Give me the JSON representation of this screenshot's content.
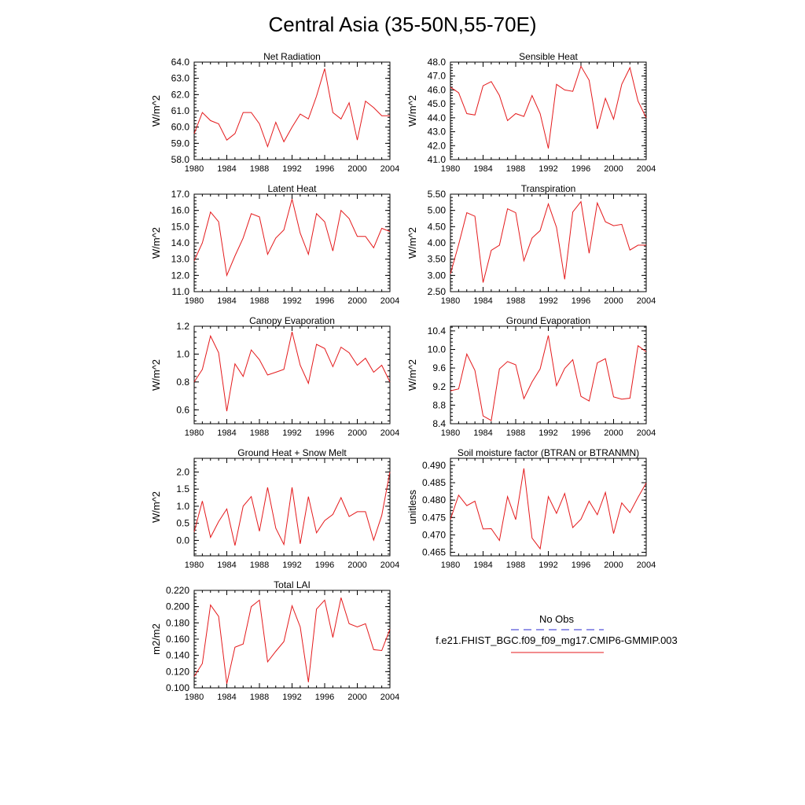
{
  "figure": {
    "title": "Central Asia (35-50N,55-70E)"
  },
  "legend": {
    "entries": [
      {
        "label": "No Obs",
        "color": "#2a2ad0",
        "style": "dashed"
      },
      {
        "label": "f.e21.FHIST_BGC.f09_f09_mg17.CMIP6-GMMIP.003",
        "color": "#e41a1c",
        "style": "solid"
      }
    ]
  },
  "chart_data": [
    {
      "type": "line",
      "title": "Net Radiation",
      "xlabel": "",
      "ylabel": "W/m^2",
      "xlim": [
        1980,
        2004
      ],
      "ylim": [
        58.0,
        64.0
      ],
      "xticks": [
        1980,
        1984,
        1988,
        1992,
        1996,
        2000,
        2004
      ],
      "yticks": [
        58.0,
        59.0,
        60.0,
        61.0,
        62.0,
        63.0,
        64.0
      ],
      "ytick_decimals": 1,
      "grid": false,
      "series": [
        {
          "color": "#e41a1c",
          "x": [
            1980,
            1981,
            1982,
            1983,
            1984,
            1985,
            1986,
            1987,
            1988,
            1989,
            1990,
            1991,
            1992,
            1993,
            1994,
            1995,
            1996,
            1997,
            1998,
            1999,
            2000,
            2001,
            2002,
            2003,
            2004
          ],
          "y": [
            59.6,
            60.9,
            60.4,
            60.2,
            59.2,
            59.6,
            60.9,
            60.9,
            60.2,
            58.8,
            60.3,
            59.1,
            60.0,
            60.8,
            60.5,
            61.9,
            63.6,
            60.9,
            60.5,
            61.5,
            59.2,
            61.6,
            61.2,
            60.7,
            60.7
          ]
        }
      ]
    },
    {
      "type": "line",
      "title": "Sensible Heat",
      "xlabel": "",
      "ylabel": "W/m^2",
      "xlim": [
        1980,
        2004
      ],
      "ylim": [
        41.0,
        48.0
      ],
      "xticks": [
        1980,
        1984,
        1988,
        1992,
        1996,
        2000,
        2004
      ],
      "yticks": [
        41.0,
        42.0,
        43.0,
        44.0,
        45.0,
        46.0,
        47.0,
        48.0
      ],
      "ytick_decimals": 1,
      "grid": false,
      "series": [
        {
          "color": "#e41a1c",
          "x": [
            1980,
            1981,
            1982,
            1983,
            1984,
            1985,
            1986,
            1987,
            1988,
            1989,
            1990,
            1991,
            1992,
            1993,
            1994,
            1995,
            1996,
            1997,
            1998,
            1999,
            2000,
            2001,
            2002,
            2003,
            2004
          ],
          "y": [
            46.2,
            45.8,
            44.3,
            44.2,
            46.3,
            46.6,
            45.6,
            43.8,
            44.3,
            44.1,
            45.6,
            44.3,
            41.8,
            46.4,
            46.0,
            45.9,
            47.7,
            46.7,
            43.2,
            45.4,
            43.9,
            46.4,
            47.6,
            45.2,
            44.0
          ]
        }
      ]
    },
    {
      "type": "line",
      "title": "Latent Heat",
      "xlabel": "",
      "ylabel": "W/m^2",
      "xlim": [
        1980,
        2004
      ],
      "ylim": [
        11.0,
        17.0
      ],
      "xticks": [
        1980,
        1984,
        1988,
        1992,
        1996,
        2000,
        2004
      ],
      "yticks": [
        11.0,
        12.0,
        13.0,
        14.0,
        15.0,
        16.0,
        17.0
      ],
      "ytick_decimals": 1,
      "grid": false,
      "series": [
        {
          "color": "#e41a1c",
          "x": [
            1980,
            1981,
            1982,
            1983,
            1984,
            1985,
            1986,
            1987,
            1988,
            1989,
            1990,
            1991,
            1992,
            1993,
            1994,
            1995,
            1996,
            1997,
            1998,
            1999,
            2000,
            2001,
            2002,
            2003,
            2004
          ],
          "y": [
            12.9,
            14.0,
            15.9,
            15.3,
            12.0,
            13.2,
            14.3,
            15.8,
            15.6,
            13.3,
            14.3,
            14.8,
            16.7,
            14.6,
            13.3,
            15.8,
            15.3,
            13.5,
            16.0,
            15.5,
            14.4,
            14.4,
            13.7,
            14.9,
            14.7
          ]
        }
      ]
    },
    {
      "type": "line",
      "title": "Transpiration",
      "xlabel": "",
      "ylabel": "W/m^2",
      "xlim": [
        1980,
        2004
      ],
      "ylim": [
        2.5,
        5.5
      ],
      "xticks": [
        1980,
        1984,
        1988,
        1992,
        1996,
        2000,
        2004
      ],
      "yticks": [
        2.5,
        3.0,
        3.5,
        4.0,
        4.5,
        5.0,
        5.5
      ],
      "ytick_decimals": 2,
      "grid": false,
      "series": [
        {
          "color": "#e41a1c",
          "x": [
            1980,
            1981,
            1982,
            1983,
            1984,
            1985,
            1986,
            1987,
            1988,
            1989,
            1990,
            1991,
            1992,
            1993,
            1994,
            1995,
            1996,
            1997,
            1998,
            1999,
            2000,
            2001,
            2002,
            2003,
            2004
          ],
          "y": [
            3.05,
            3.95,
            4.93,
            4.82,
            2.78,
            3.77,
            3.93,
            5.05,
            4.93,
            3.45,
            4.15,
            4.38,
            5.2,
            4.48,
            2.88,
            4.95,
            5.27,
            3.68,
            5.23,
            4.65,
            4.53,
            4.57,
            3.78,
            3.93,
            3.93
          ]
        }
      ]
    },
    {
      "type": "line",
      "title": "Canopy Evaporation",
      "xlabel": "",
      "ylabel": "W/m^2",
      "xlim": [
        1980,
        2004
      ],
      "ylim": [
        0.5,
        1.2
      ],
      "xticks": [
        1980,
        1984,
        1988,
        1992,
        1996,
        2000,
        2004
      ],
      "yticks": [
        0.6,
        0.8,
        1.0,
        1.2
      ],
      "ytick_decimals": 1,
      "grid": false,
      "series": [
        {
          "color": "#e41a1c",
          "x": [
            1980,
            1981,
            1982,
            1983,
            1984,
            1985,
            1986,
            1987,
            1988,
            1989,
            1990,
            1991,
            1992,
            1993,
            1994,
            1995,
            1996,
            1997,
            1998,
            1999,
            2000,
            2001,
            2002,
            2003,
            2004
          ],
          "y": [
            0.8,
            0.89,
            1.13,
            1.01,
            0.59,
            0.93,
            0.84,
            1.03,
            0.96,
            0.85,
            0.87,
            0.89,
            1.16,
            0.92,
            0.79,
            1.07,
            1.04,
            0.91,
            1.05,
            1.01,
            0.92,
            0.97,
            0.87,
            0.92,
            0.8
          ]
        }
      ]
    },
    {
      "type": "line",
      "title": "Ground Evaporation",
      "xlabel": "",
      "ylabel": "W/m^2",
      "xlim": [
        1980,
        2004
      ],
      "ylim": [
        8.4,
        10.5
      ],
      "xticks": [
        1980,
        1984,
        1988,
        1992,
        1996,
        2000,
        2004
      ],
      "yticks": [
        8.4,
        8.8,
        9.2,
        9.6,
        10.0,
        10.4
      ],
      "ytick_decimals": 1,
      "grid": false,
      "series": [
        {
          "color": "#e41a1c",
          "x": [
            1980,
            1981,
            1982,
            1983,
            1984,
            1985,
            1986,
            1987,
            1988,
            1989,
            1990,
            1991,
            1992,
            1993,
            1994,
            1995,
            1996,
            1997,
            1998,
            1999,
            2000,
            2001,
            2002,
            2003,
            2004
          ],
          "y": [
            9.11,
            9.15,
            9.9,
            9.55,
            8.57,
            8.47,
            9.58,
            9.74,
            9.67,
            8.94,
            9.3,
            9.58,
            10.3,
            9.22,
            9.59,
            9.78,
            8.99,
            8.89,
            9.71,
            9.8,
            8.98,
            8.93,
            8.95,
            10.08,
            9.95
          ]
        }
      ]
    },
    {
      "type": "line",
      "title": "Ground Heat + Snow Melt",
      "xlabel": "",
      "ylabel": "W/m^2",
      "xlim": [
        1980,
        2004
      ],
      "ylim": [
        -0.45,
        2.4
      ],
      "xticks": [
        1980,
        1984,
        1988,
        1992,
        1996,
        2000,
        2004
      ],
      "yticks": [
        0.0,
        0.5,
        1.0,
        1.5,
        2.0
      ],
      "ytick_decimals": 1,
      "grid": false,
      "series": [
        {
          "color": "#e41a1c",
          "x": [
            1980,
            1981,
            1982,
            1983,
            1984,
            1985,
            1986,
            1987,
            1988,
            1989,
            1990,
            1991,
            1992,
            1993,
            1994,
            1995,
            1996,
            1997,
            1998,
            1999,
            2000,
            2001,
            2002,
            2003,
            2004
          ],
          "y": [
            0.25,
            1.15,
            0.09,
            0.55,
            0.92,
            -0.15,
            1.0,
            1.28,
            0.27,
            1.55,
            0.36,
            -0.12,
            1.55,
            -0.1,
            1.28,
            0.22,
            0.58,
            0.76,
            1.25,
            0.7,
            0.84,
            0.84,
            0.01,
            0.73,
            2.0
          ]
        }
      ]
    },
    {
      "type": "line",
      "title": "Soil moisture factor (BTRAN or BTRANMN)",
      "xlabel": "",
      "ylabel": "unitless",
      "xlim": [
        1980,
        2004
      ],
      "ylim": [
        0.464,
        0.492
      ],
      "xticks": [
        1980,
        1984,
        1988,
        1992,
        1996,
        2000,
        2004
      ],
      "yticks": [
        0.465,
        0.47,
        0.475,
        0.48,
        0.485,
        0.49
      ],
      "ytick_decimals": 3,
      "grid": false,
      "series": [
        {
          "color": "#e41a1c",
          "x": [
            1980,
            1981,
            1982,
            1983,
            1984,
            1985,
            1986,
            1987,
            1988,
            1989,
            1990,
            1991,
            1992,
            1993,
            1994,
            1995,
            1996,
            1997,
            1998,
            1999,
            2000,
            2001,
            2002,
            2003,
            2004
          ],
          "y": [
            0.4745,
            0.4814,
            0.4784,
            0.4797,
            0.4717,
            0.4718,
            0.4684,
            0.481,
            0.4744,
            0.4891,
            0.4691,
            0.466,
            0.481,
            0.4762,
            0.4819,
            0.4721,
            0.4745,
            0.4797,
            0.4758,
            0.4822,
            0.4704,
            0.4792,
            0.4764,
            0.4808,
            0.4849
          ]
        }
      ]
    },
    {
      "type": "line",
      "title": "Total LAI",
      "xlabel": "",
      "ylabel": "m2/m2",
      "xlim": [
        1980,
        2004
      ],
      "ylim": [
        0.1,
        0.22
      ],
      "xticks": [
        1980,
        1984,
        1988,
        1992,
        1996,
        2000,
        2004
      ],
      "yticks": [
        0.1,
        0.12,
        0.14,
        0.16,
        0.18,
        0.2,
        0.22
      ],
      "ytick_decimals": 3,
      "grid": false,
      "series": [
        {
          "color": "#e41a1c",
          "x": [
            1980,
            1981,
            1982,
            1983,
            1984,
            1985,
            1986,
            1987,
            1988,
            1989,
            1990,
            1991,
            1992,
            1993,
            1994,
            1995,
            1996,
            1997,
            1998,
            1999,
            2000,
            2001,
            2002,
            2003,
            2004
          ],
          "y": [
            0.114,
            0.13,
            0.202,
            0.188,
            0.105,
            0.15,
            0.154,
            0.2,
            0.208,
            0.132,
            0.145,
            0.157,
            0.201,
            0.175,
            0.107,
            0.197,
            0.208,
            0.162,
            0.211,
            0.179,
            0.175,
            0.179,
            0.147,
            0.146,
            0.172
          ]
        }
      ]
    }
  ]
}
